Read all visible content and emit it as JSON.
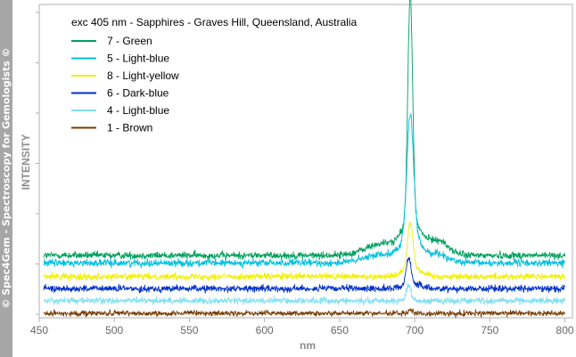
{
  "watermark": "© Spec4Gem - Spectroscopy for Gemologists ©",
  "chart_data": {
    "type": "line",
    "title": "exc 405 nm - Sapphires - Graves Hill, Queensland, Australia",
    "xlabel": "nm",
    "ylabel": "INTENSITY",
    "xlim": [
      450,
      805
    ],
    "ylim": [
      0,
      100
    ],
    "x_ticks": [
      450,
      500,
      550,
      600,
      650,
      700,
      750,
      800
    ],
    "y_ticks_labeled": false,
    "grid": false,
    "legend_position": "top-left",
    "series": [
      {
        "name": "7 - Green",
        "color": "#00a060",
        "baseline": 19.5,
        "noise": 1.2,
        "peaks": [
          {
            "center": 697,
            "height": 75,
            "width": 1.6
          },
          {
            "center": 698,
            "height": 10,
            "width": 6
          },
          {
            "center": 680,
            "height": 4,
            "width": 12
          },
          {
            "center": 715,
            "height": 5,
            "width": 7
          }
        ]
      },
      {
        "name": "5 - Light-blue",
        "color": "#00c0e0",
        "baseline": 17,
        "noise": 1.2,
        "peaks": [
          {
            "center": 697,
            "height": 40,
            "width": 2.2
          },
          {
            "center": 698,
            "height": 8,
            "width": 6
          },
          {
            "center": 680,
            "height": 3,
            "width": 12
          },
          {
            "center": 715,
            "height": 3,
            "width": 7
          }
        ]
      },
      {
        "name": "8 - Light-yellow",
        "color": "#f0f000",
        "baseline": 12.5,
        "noise": 1.1,
        "peaks": [
          {
            "center": 697,
            "height": 15,
            "width": 1.8
          },
          {
            "center": 698,
            "height": 3,
            "width": 6
          }
        ]
      },
      {
        "name": "6 - Dark-blue",
        "color": "#0030c8",
        "baseline": 8.5,
        "noise": 1.1,
        "peaks": [
          {
            "center": 696,
            "height": 9,
            "width": 1.6
          },
          {
            "center": 698,
            "height": 1.5,
            "width": 6
          }
        ]
      },
      {
        "name": "4 - Light-blue",
        "color": "#80e0f0",
        "baseline": 4.5,
        "noise": 1.1,
        "peaks": [
          {
            "center": 696,
            "height": 5,
            "width": 1.6
          }
        ]
      },
      {
        "name": "1 - Brown",
        "color": "#7a3c00",
        "baseline": 0.3,
        "noise": 0.9,
        "peaks": [
          {
            "center": 697,
            "height": 0.8,
            "width": 2
          }
        ]
      }
    ]
  }
}
